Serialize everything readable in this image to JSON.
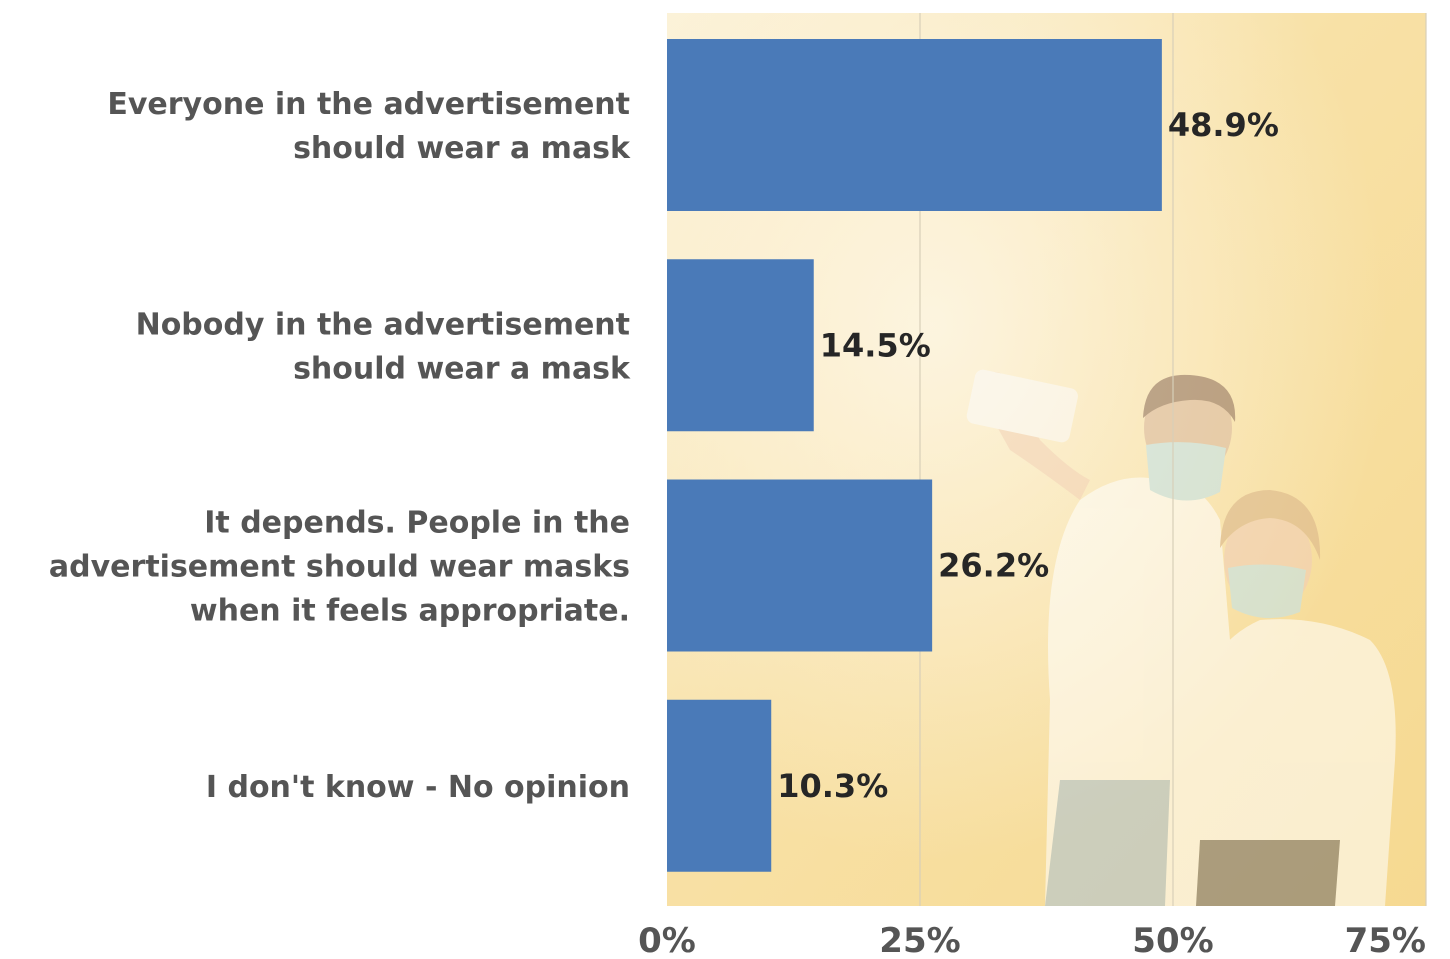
{
  "chart_data": {
    "type": "bar",
    "orientation": "horizontal",
    "categories": [
      [
        "Everyone in the advertisement",
        "should wear a mask"
      ],
      [
        "Nobody in the advertisement",
        "should wear a mask"
      ],
      [
        "It depends. People in the",
        "advertisement should wear masks",
        "when it feels appropriate."
      ],
      [
        "I don't know - No opinion"
      ]
    ],
    "values": [
      48.9,
      14.5,
      26.2,
      10.3
    ],
    "data_labels": [
      "48.9%",
      "14.5%",
      "26.2%",
      "10.3%"
    ],
    "xlim": [
      0,
      75
    ],
    "xticks": [
      0,
      25,
      50,
      75
    ],
    "xtick_labels": [
      "0%",
      "25%",
      "50%",
      "75%"
    ],
    "grid": true,
    "colors": {
      "bar": "#4a7ab8",
      "background_warm": "#f7d78a",
      "background_light": "#fbf1d9",
      "label_text": "#555555",
      "value_text": "#262626"
    },
    "background_image": "couple-wearing-face-masks-taking-selfie-photo"
  }
}
